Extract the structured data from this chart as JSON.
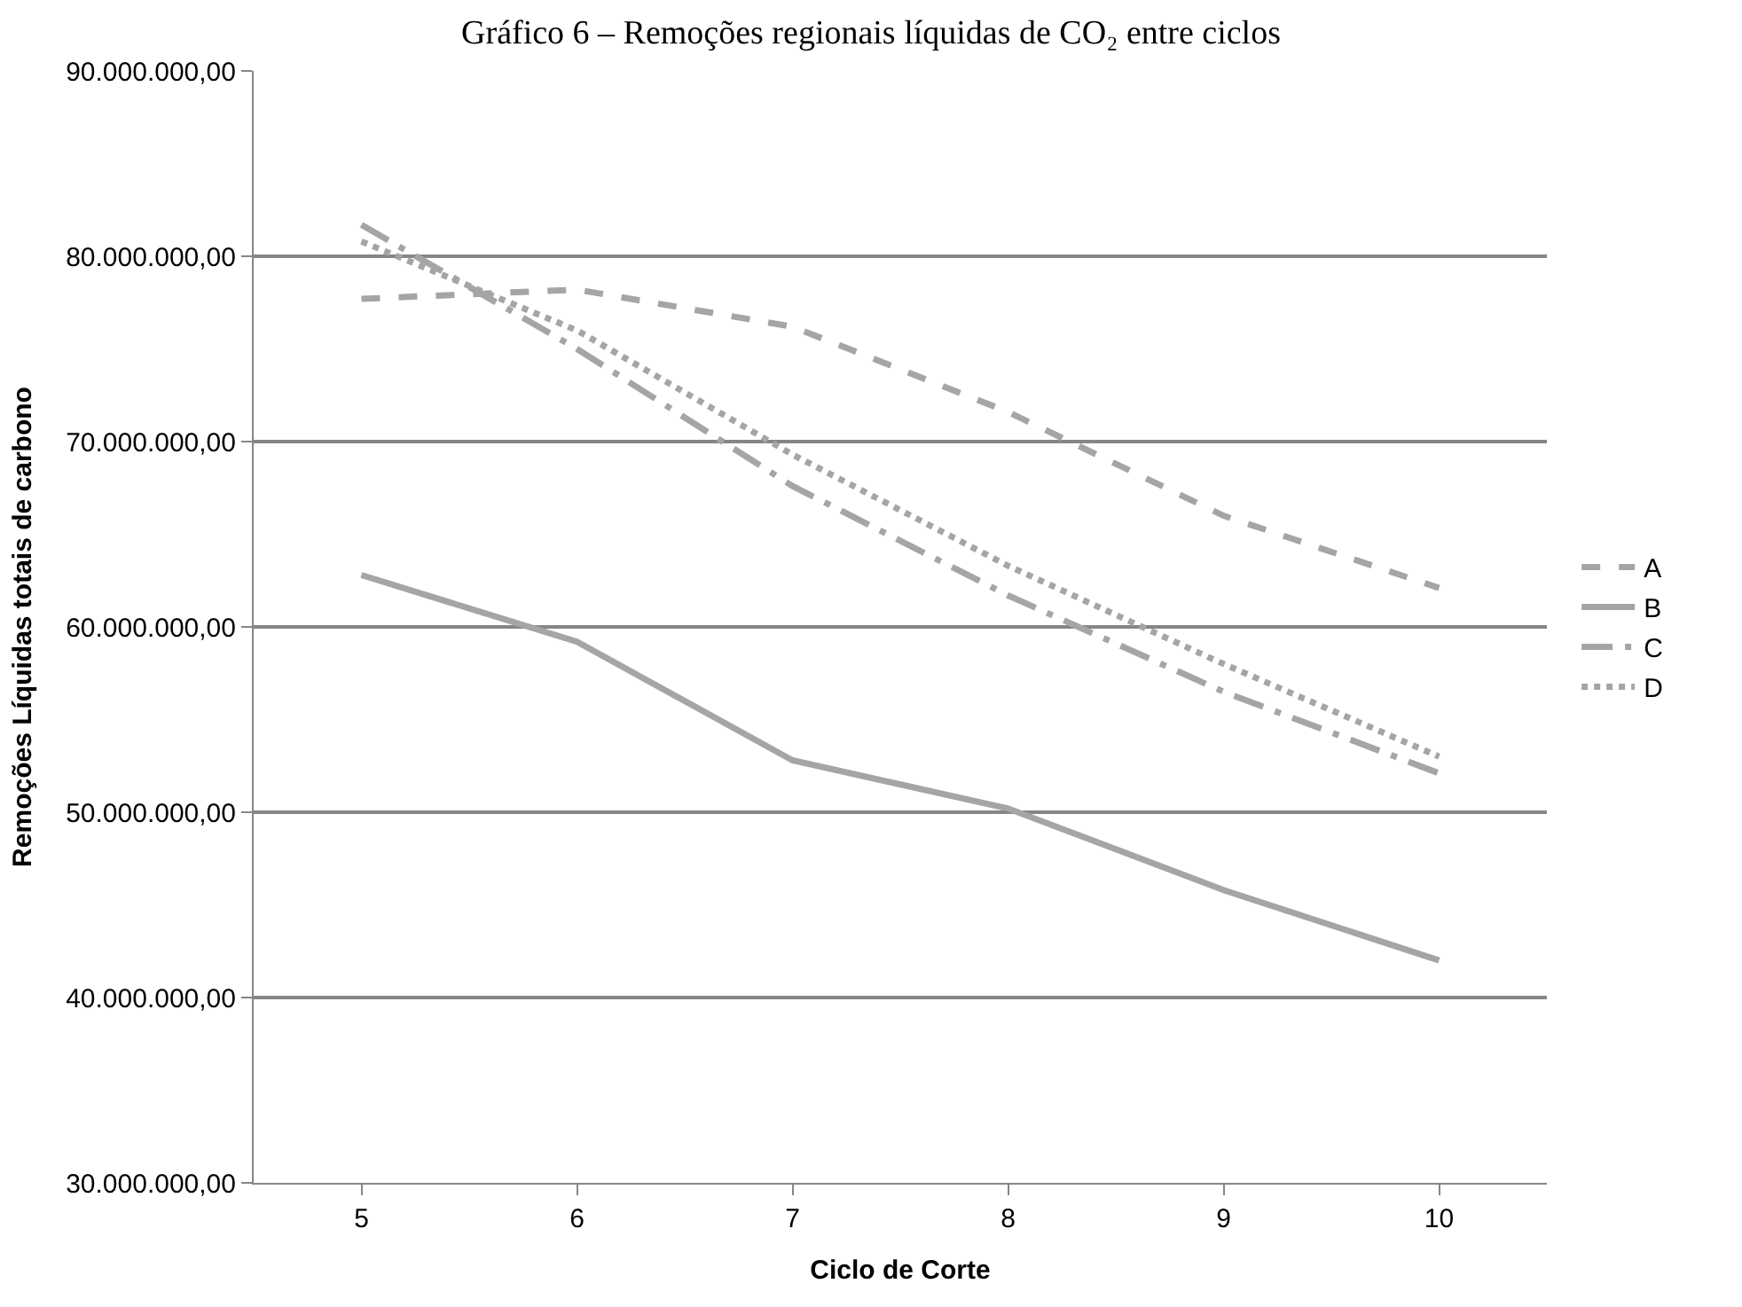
{
  "chart_data": {
    "type": "line",
    "title": "Gráfico 6 – Remoções regionais líquidas de CO₂ entre ciclos",
    "xlabel": "Ciclo de Corte",
    "ylabel": "Remoções Líquidas totais de carbono",
    "categories": [
      "5",
      "6",
      "7",
      "8",
      "9",
      "10"
    ],
    "ylim": [
      30000000,
      90000000
    ],
    "yticks": [
      {
        "value": 30000000,
        "label": "30.000.000,00"
      },
      {
        "value": 40000000,
        "label": "40.000.000,00"
      },
      {
        "value": 50000000,
        "label": "50.000.000,00"
      },
      {
        "value": 60000000,
        "label": "60.000.000,00"
      },
      {
        "value": 70000000,
        "label": "70.000.000,00"
      },
      {
        "value": 80000000,
        "label": "80.000.000,00"
      },
      {
        "value": 90000000,
        "label": "90.000.000,00"
      }
    ],
    "grid": "y",
    "legend": "right",
    "marker": "none",
    "series": [
      {
        "name": "A",
        "color": "#a5a5a5",
        "line_style": "dashed",
        "values": [
          77700000,
          78200000,
          76200000,
          71600000,
          66000000,
          62100000
        ]
      },
      {
        "name": "B",
        "color": "#a5a5a5",
        "line_style": "solid",
        "values": [
          62800000,
          59200000,
          52800000,
          50200000,
          45800000,
          42000000
        ]
      },
      {
        "name": "C",
        "color": "#a5a5a5",
        "line_style": "longdashdot",
        "values": [
          81700000,
          75000000,
          67600000,
          61700000,
          56500000,
          52100000
        ]
      },
      {
        "name": "D",
        "color": "#a5a5a5",
        "line_style": "dotted",
        "values": [
          80800000,
          76000000,
          69300000,
          63300000,
          58000000,
          53000000
        ]
      }
    ]
  }
}
